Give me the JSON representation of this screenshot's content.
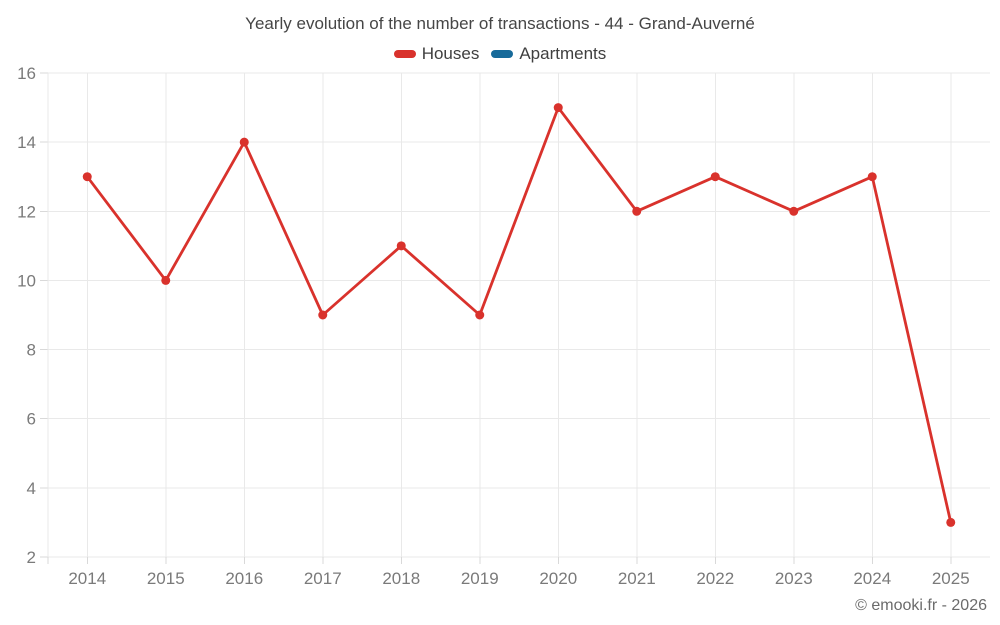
{
  "title": "Yearly evolution of the number of transactions - 44 - Grand-Auverné",
  "footer": "© emooki.fr - 2026",
  "legend": {
    "items": [
      {
        "label": "Houses",
        "color": "#d9322c"
      },
      {
        "label": "Apartments",
        "color": "#176a9a"
      }
    ]
  },
  "colors": {
    "background": "#ffffff",
    "grid": "#e9e9e9",
    "tick": "#d9d9d9",
    "axis_label": "#7a7a7a",
    "title_text": "#464646",
    "legend_text": "#3f3f3f",
    "footer_text": "#6b6b6b",
    "houses": "#d9322c",
    "apartments": "#176a9a"
  },
  "chart_data": {
    "type": "line",
    "categories": [
      "2014",
      "2015",
      "2016",
      "2017",
      "2018",
      "2019",
      "2020",
      "2021",
      "2022",
      "2023",
      "2024",
      "2025"
    ],
    "series": [
      {
        "name": "Houses",
        "color": "#d9322c",
        "values": [
          13,
          10,
          14,
          9,
          11,
          9,
          15,
          12,
          13,
          12,
          13,
          3
        ]
      },
      {
        "name": "Apartments",
        "color": "#176a9a",
        "values": []
      }
    ],
    "title": "Yearly evolution of the number of transactions - 44 - Grand-Auverné",
    "xlabel": "",
    "ylabel": "",
    "ylim": [
      2,
      16
    ],
    "ytick_step": 2,
    "yticks": [
      2,
      4,
      6,
      8,
      10,
      12,
      14,
      16
    ],
    "grid": true,
    "legend_position": "top",
    "marker": "circle"
  }
}
